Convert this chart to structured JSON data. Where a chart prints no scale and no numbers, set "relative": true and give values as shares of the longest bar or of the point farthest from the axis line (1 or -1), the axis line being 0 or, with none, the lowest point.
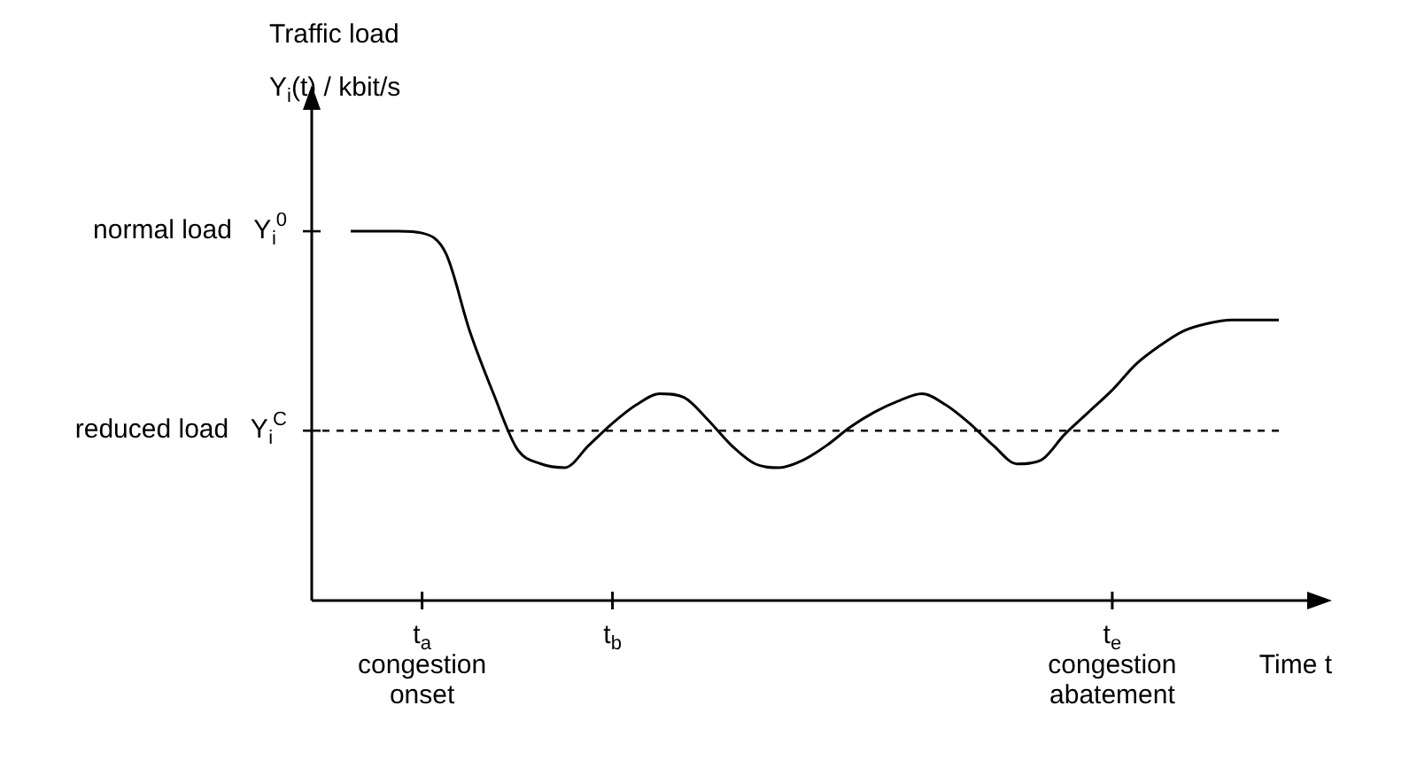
{
  "chart_data": {
    "type": "line",
    "relative": true,
    "marker": "none",
    "line_style": "solid",
    "color": "#000000",
    "ylabel": "Traffic load\nY$_{i}$(t) / kbit/s",
    "xlabel": "Time t",
    "categories": [
      null,
      null,
      null,
      "t$_{a}$\ncongestion\nonset",
      null,
      null,
      null,
      null,
      null,
      null,
      null,
      "t$_{b}$",
      null,
      null,
      null,
      null,
      null,
      null,
      null,
      null,
      null,
      null,
      null,
      null,
      null,
      null,
      null,
      null,
      null,
      null,
      null,
      null,
      "t$_{e}$\ncongestion\nabatement",
      null,
      null,
      null,
      null,
      null,
      null,
      null
    ],
    "values": [
      1.0,
      1.0,
      1.0,
      0.995,
      0.94,
      0.73,
      0.56,
      0.41,
      0.37,
      0.36,
      0.42,
      0.48,
      0.53,
      0.56,
      0.55,
      0.49,
      0.42,
      0.37,
      0.36,
      0.38,
      0.42,
      0.47,
      0.51,
      0.54,
      0.56,
      0.53,
      0.48,
      0.42,
      0.37,
      0.38,
      0.45,
      0.51,
      0.57,
      0.64,
      0.69,
      0.73,
      0.75,
      0.76,
      0.76,
      0.76
    ],
    "ref_lines": [
      {
        "axis": "y",
        "value": 1.0,
        "label": "normal load   Y$_{i}$$^{0}$",
        "color": "#000000"
      },
      {
        "axis": "y",
        "value": 0.46,
        "label": "reduced load   Y$_{i}$$^{C}$",
        "line_style": "dashed",
        "color": "#000000"
      }
    ]
  }
}
